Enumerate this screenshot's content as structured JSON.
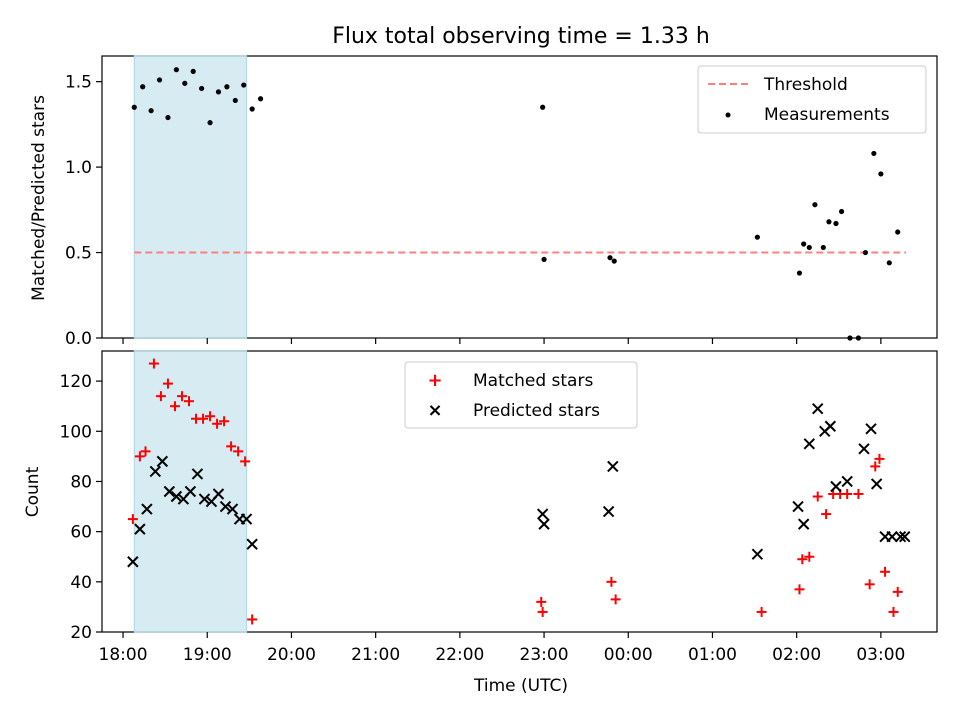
{
  "figure_title": "Flux total observing time = 1.33 h",
  "xlabel": "Time (UTC)",
  "x_ticks": [
    "18:00",
    "19:00",
    "20:00",
    "21:00",
    "22:00",
    "23:00",
    "00:00",
    "01:00",
    "02:00",
    "03:00"
  ],
  "colors": {
    "threshold": "#ff7f7f",
    "measurements": "#000000",
    "matched": "#ff0000",
    "predicted": "#000000",
    "span_fill": "#add8e6"
  },
  "chart_data": [
    {
      "type": "scatter",
      "ylabel": "Matched/Predicted stars",
      "ylim": [
        0,
        1.65
      ],
      "y_ticks": [
        "0.0",
        "0.5",
        "1.0",
        "1.5"
      ],
      "xlim": [
        "17:45",
        "03:40"
      ],
      "highlight_span": [
        "18:08",
        "19:28"
      ],
      "threshold": 0.5,
      "legend": [
        "Threshold",
        "Measurements"
      ],
      "legend_placement": "top-right",
      "series": [
        {
          "name": "Measurements",
          "x": [
            "18:08",
            "18:14",
            "18:20",
            "18:26",
            "18:32",
            "18:38",
            "18:44",
            "18:50",
            "18:56",
            "19:02",
            "19:08",
            "19:14",
            "19:20",
            "19:26",
            "19:32",
            "19:38",
            "22:59",
            "23:00",
            "23:47",
            "23:50",
            "01:32",
            "02:02",
            "02:05",
            "02:09",
            "02:13",
            "02:19",
            "02:23",
            "02:28",
            "02:32",
            "02:38",
            "02:44",
            "02:49",
            "02:55",
            "03:00",
            "03:06",
            "03:12"
          ],
          "y": [
            1.35,
            1.47,
            1.33,
            1.51,
            1.29,
            1.57,
            1.49,
            1.56,
            1.46,
            1.26,
            1.44,
            1.47,
            1.39,
            1.48,
            1.34,
            1.4,
            1.35,
            0.46,
            0.47,
            0.45,
            0.59,
            0.38,
            0.55,
            0.53,
            0.78,
            0.53,
            0.68,
            0.67,
            0.74,
            0.0,
            0.0,
            0.5,
            1.08,
            0.96,
            0.44,
            0.62
          ],
          "note_ignore": ""
        }
      ]
    },
    {
      "type": "scatter",
      "ylabel": "Count",
      "ylim": [
        20,
        132
      ],
      "y_ticks": [
        "20",
        "40",
        "60",
        "80",
        "100",
        "120"
      ],
      "xlim": [
        "17:45",
        "03:40"
      ],
      "highlight_span": [
        "18:08",
        "19:28"
      ],
      "legend": [
        "Matched stars",
        "Predicted stars"
      ],
      "legend_placement": "top-center",
      "series": [
        {
          "name": "Matched stars",
          "x": [
            "18:07",
            "18:12",
            "18:16",
            "18:22",
            "18:27",
            "18:32",
            "18:37",
            "18:42",
            "18:47",
            "18:52",
            "18:57",
            "19:02",
            "19:07",
            "19:12",
            "19:17",
            "19:22",
            "19:27",
            "19:32",
            "22:58",
            "22:59",
            "23:48",
            "23:51",
            "01:35",
            "02:02",
            "02:04",
            "02:09",
            "02:15",
            "02:21",
            "02:26",
            "02:31",
            "02:36",
            "02:44",
            "02:52",
            "02:56",
            "02:59",
            "03:03",
            "03:09",
            "03:12"
          ],
          "y": [
            65,
            90,
            92,
            127,
            114,
            119,
            110,
            114,
            112,
            105,
            105,
            106,
            103,
            104,
            94,
            92,
            88,
            25,
            32,
            28,
            40,
            33,
            28,
            37,
            49,
            50,
            74,
            67,
            75,
            75,
            75,
            75,
            39,
            86,
            89,
            44,
            28,
            36
          ]
        },
        {
          "name": "Predicted stars",
          "x": [
            "18:07",
            "18:12",
            "18:17",
            "18:23",
            "18:28",
            "18:33",
            "18:38",
            "18:43",
            "18:48",
            "18:53",
            "18:58",
            "19:03",
            "19:08",
            "19:13",
            "19:18",
            "19:23",
            "19:28",
            "19:32",
            "22:59",
            "23:00",
            "23:46",
            "23:49",
            "01:32",
            "02:01",
            "02:05",
            "02:09",
            "02:15",
            "02:20",
            "02:24",
            "02:28",
            "02:36",
            "02:48",
            "02:53",
            "02:57",
            "03:03",
            "03:08",
            "03:14",
            "03:17"
          ],
          "y": [
            48,
            61,
            69,
            84,
            88,
            76,
            74,
            73,
            76,
            83,
            73,
            72,
            75,
            70,
            69,
            65,
            65,
            55,
            67,
            63,
            68,
            86,
            51,
            70,
            63,
            95,
            109,
            100,
            102,
            78,
            80,
            93,
            101,
            79,
            58,
            58,
            58,
            58
          ]
        }
      ]
    }
  ]
}
